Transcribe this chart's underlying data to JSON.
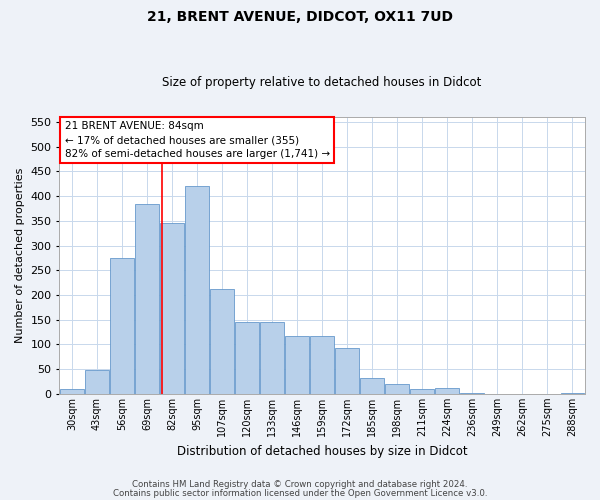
{
  "title1": "21, BRENT AVENUE, DIDCOT, OX11 7UD",
  "title2": "Size of property relative to detached houses in Didcot",
  "xlabel": "Distribution of detached houses by size in Didcot",
  "ylabel": "Number of detached properties",
  "categories": [
    "30sqm",
    "43sqm",
    "56sqm",
    "69sqm",
    "82sqm",
    "95sqm",
    "107sqm",
    "120sqm",
    "133sqm",
    "146sqm",
    "159sqm",
    "172sqm",
    "185sqm",
    "198sqm",
    "211sqm",
    "224sqm",
    "236sqm",
    "249sqm",
    "262sqm",
    "275sqm",
    "288sqm"
  ],
  "values": [
    10,
    48,
    275,
    385,
    345,
    420,
    212,
    145,
    145,
    117,
    117,
    92,
    32,
    20,
    10,
    12,
    1,
    0,
    0,
    0,
    2
  ],
  "bar_color": "#b8d0ea",
  "bar_edge_color": "#6699cc",
  "grid_color": "#c8d8ec",
  "annotation_line1": "21 BRENT AVENUE: 84sqm",
  "annotation_line2": "← 17% of detached houses are smaller (355)",
  "annotation_line3": "82% of semi-detached houses are larger (1,741) →",
  "annotation_box_color": "white",
  "annotation_box_edge_color": "red",
  "vline_color": "red",
  "vline_x": 3.62,
  "ylim": [
    0,
    560
  ],
  "yticks": [
    0,
    50,
    100,
    150,
    200,
    250,
    300,
    350,
    400,
    450,
    500,
    550
  ],
  "footer1": "Contains HM Land Registry data © Crown copyright and database right 2024.",
  "footer2": "Contains public sector information licensed under the Open Government Licence v3.0.",
  "bg_color": "#eef2f8",
  "plot_bg_color": "white"
}
